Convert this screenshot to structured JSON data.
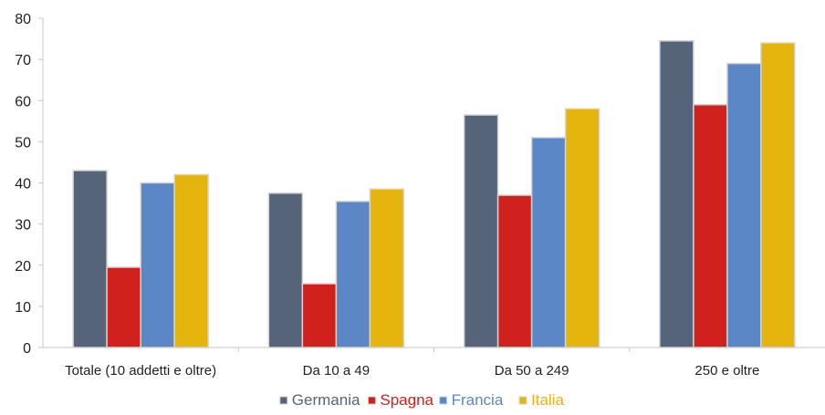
{
  "chart_data": {
    "type": "bar",
    "categories": [
      "Totale (10 addetti e oltre)",
      "Da 10 a 49",
      "Da 50 a 249",
      "250 e oltre"
    ],
    "series": [
      {
        "name": "Germania",
        "color": "#556479",
        "values": [
          43,
          37.5,
          56.5,
          74.5
        ]
      },
      {
        "name": "Spagna",
        "color": "#d0211c",
        "values": [
          19.5,
          15.5,
          37,
          59
        ]
      },
      {
        "name": "Francia",
        "color": "#5b87c7",
        "values": [
          40,
          35.5,
          51,
          69
        ]
      },
      {
        "name": "Italia",
        "color": "#e5b40d",
        "values": [
          42,
          38.5,
          58,
          74
        ]
      }
    ],
    "ylim": [
      0,
      80
    ],
    "yticks": [
      0,
      10,
      20,
      30,
      40,
      50,
      60,
      70,
      80
    ],
    "grid": false,
    "legend_position": "bottom"
  }
}
